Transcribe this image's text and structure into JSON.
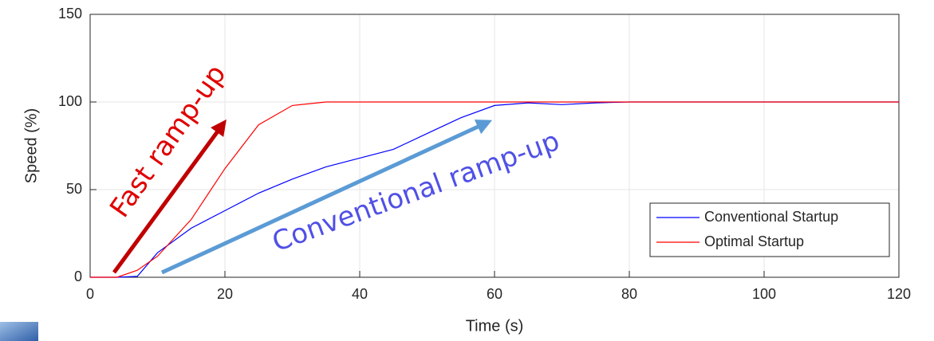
{
  "chart_data": {
    "type": "line",
    "x_label": "Time (s)",
    "y_label": "Speed (%)",
    "x": [
      0,
      4,
      7,
      10,
      15,
      20,
      25,
      30,
      35,
      40,
      45,
      50,
      55,
      60,
      65,
      70,
      75,
      80,
      90,
      100,
      110,
      120
    ],
    "series": [
      {
        "name": "Conventional Startup",
        "color": "#0000ff",
        "values": [
          0,
          0,
          0.5,
          14,
          28,
          38,
          48,
          56,
          63,
          68,
          73,
          82,
          91,
          98,
          99.5,
          98.5,
          99.5,
          100,
          100,
          100,
          100,
          100
        ]
      },
      {
        "name": "Optimal Startup",
        "color": "#ff0000",
        "values": [
          0,
          0,
          4,
          12,
          33,
          62,
          87,
          98,
          100,
          100,
          100,
          100,
          100,
          100,
          100,
          100,
          100,
          100,
          100,
          100,
          100,
          100
        ]
      }
    ],
    "annotations": [
      "Fast ramp-up",
      "Conventional ramp-up"
    ],
    "xlim": [
      0,
      120
    ],
    "ylim": [
      0,
      150
    ],
    "xticks": [
      0,
      20,
      40,
      60,
      80,
      100,
      120
    ],
    "yticks": [
      0,
      50,
      100,
      150
    ],
    "grid": true,
    "legend": "lower right"
  }
}
